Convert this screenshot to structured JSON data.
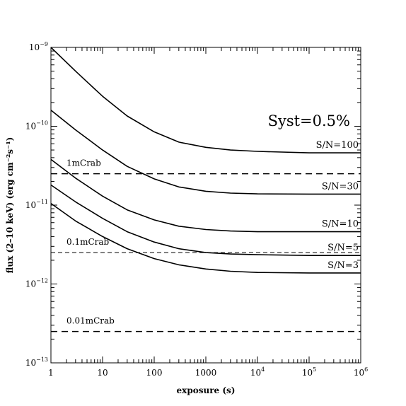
{
  "chart_data": {
    "type": "line",
    "xlabel": "exposure (s)",
    "ylabel": "flux (2–10 keV) (erg cm⁻²s⁻¹)",
    "xscale": "log",
    "yscale": "log",
    "xlim": [
      1,
      1000000
    ],
    "ylim": [
      1e-13,
      1e-09
    ],
    "grid": false,
    "x_ticks": [
      {
        "value": 1,
        "base": "1",
        "exp": ""
      },
      {
        "value": 10,
        "base": "10",
        "exp": ""
      },
      {
        "value": 100,
        "base": "100",
        "exp": ""
      },
      {
        "value": 1000,
        "base": "1000",
        "exp": ""
      },
      {
        "value": 10000,
        "base": "10",
        "exp": "4"
      },
      {
        "value": 100000,
        "base": "10",
        "exp": "5"
      },
      {
        "value": 1000000,
        "base": "10",
        "exp": "6"
      }
    ],
    "y_ticks": [
      {
        "value": 1e-13,
        "base": "10",
        "exp": "−13"
      },
      {
        "value": 1e-12,
        "base": "10",
        "exp": "−12"
      },
      {
        "value": 1e-11,
        "base": "10",
        "exp": "−11"
      },
      {
        "value": 1e-10,
        "base": "10",
        "exp": "−10"
      },
      {
        "value": 1e-09,
        "base": "10",
        "exp": "−9"
      }
    ],
    "series": [
      {
        "name": "S/N=100",
        "x": [
          1,
          3,
          10,
          30,
          100,
          300,
          1000,
          3000,
          10000,
          100000,
          1000000
        ],
        "y": [
          1e-09,
          5e-10,
          2.4e-10,
          1.35e-10,
          8.5e-11,
          6.3e-11,
          5.4e-11,
          5e-11,
          4.8e-11,
          4.6e-11,
          4.6e-11
        ]
      },
      {
        "name": "S/N=30",
        "x": [
          1,
          3,
          10,
          30,
          100,
          300,
          1000,
          3000,
          10000,
          100000,
          1000000
        ],
        "y": [
          1.6e-10,
          9e-11,
          5e-11,
          3.1e-11,
          2.15e-11,
          1.7e-11,
          1.5e-11,
          1.42e-11,
          1.39e-11,
          1.38e-11,
          1.38e-11
        ]
      },
      {
        "name": "S/N=10",
        "x": [
          1,
          3,
          10,
          30,
          100,
          300,
          1000,
          3000,
          10000,
          100000,
          1000000
        ],
        "y": [
          3.8e-11,
          2.2e-11,
          1.3e-11,
          8.7e-12,
          6.5e-12,
          5.4e-12,
          4.9e-12,
          4.7e-12,
          4.6e-12,
          4.6e-12,
          4.6e-12
        ]
      },
      {
        "name": "S/N=5",
        "x": [
          1,
          3,
          10,
          30,
          100,
          300,
          1000,
          3000,
          10000,
          100000,
          1000000
        ],
        "y": [
          1.8e-11,
          1.1e-11,
          6.8e-12,
          4.6e-12,
          3.4e-12,
          2.8e-12,
          2.5e-12,
          2.4e-12,
          2.35e-12,
          2.3e-12,
          2.3e-12
        ]
      },
      {
        "name": "S/N=3",
        "x": [
          1,
          3,
          10,
          30,
          100,
          300,
          1000,
          3000,
          10000,
          100000,
          1000000
        ],
        "y": [
          1.05e-11,
          6.3e-12,
          4e-12,
          2.8e-12,
          2.1e-12,
          1.75e-12,
          1.55e-12,
          1.45e-12,
          1.4e-12,
          1.38e-12,
          1.38e-12
        ]
      }
    ],
    "reference_lines": [
      {
        "label": "1mCrab",
        "y": 2.5e-11,
        "style": "dashed"
      },
      {
        "label": "0.1mCrab",
        "y": 2.5e-12,
        "style": "dashed-thin"
      },
      {
        "label": "0.01mCrab",
        "y": 2.5e-13,
        "style": "dashed"
      }
    ],
    "annotation": "Syst=0.5%",
    "line_color": "#000000"
  }
}
